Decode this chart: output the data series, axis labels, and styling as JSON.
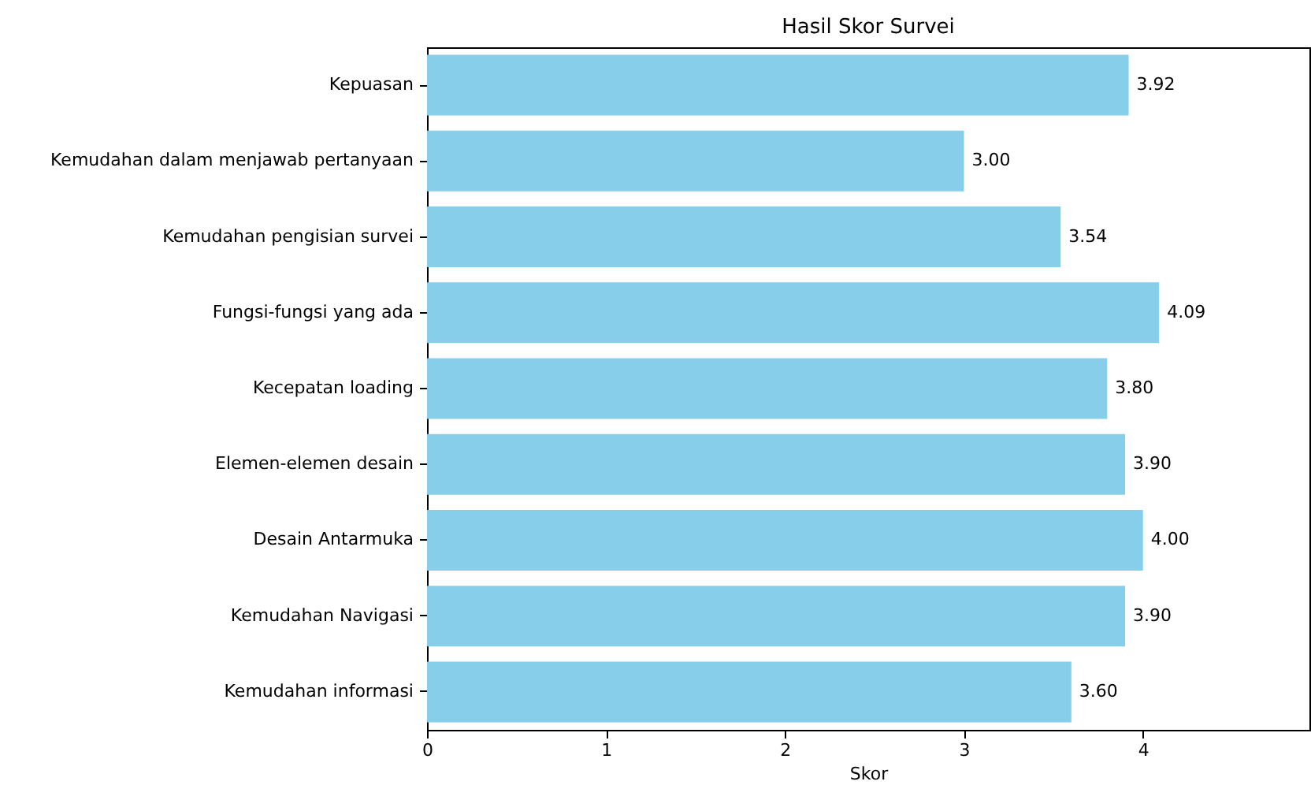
{
  "chart_data": {
    "type": "bar",
    "orientation": "horizontal",
    "title": "Hasil Skor Survei",
    "xlabel": "Skor",
    "categories": [
      "Kepuasan",
      "Kemudahan dalam menjawab pertanyaan",
      "Kemudahan pengisian survei",
      "Fungsi-fungsi yang ada",
      "Kecepatan loading",
      "Elemen-elemen desain",
      "Desain Antarmuka",
      "Kemudahan Navigasi",
      "Kemudahan informasi"
    ],
    "values": [
      3.92,
      3.0,
      3.54,
      4.09,
      3.8,
      3.9,
      4.0,
      3.9,
      3.6
    ],
    "value_labels": [
      "3.92",
      "3.00",
      "3.54",
      "4.09",
      "3.80",
      "3.90",
      "4.00",
      "3.90",
      "3.60"
    ],
    "color": "#87ceeb",
    "xlim": [
      0,
      4.93
    ],
    "xticks": [
      0,
      1,
      2,
      3,
      4
    ],
    "grid": false
  }
}
